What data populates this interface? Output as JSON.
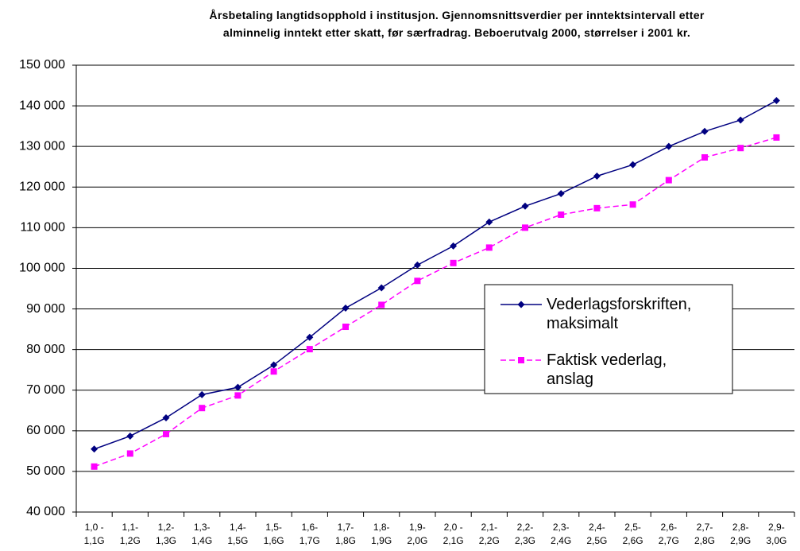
{
  "chart_data": {
    "type": "line",
    "title": "Årsbetaling langtidsopphold i institusjon. Gjennomsnittsverdier per inntektsintervall etter\nalminnelig inntekt etter skatt, før særfradrag. Beboerutvalg 2000, størrelser i 2001 kr.",
    "categories": [
      "1,0 -\n1,1G",
      "1,1-\n1,2G",
      "1,2-\n1,3G",
      "1,3-\n1,4G",
      "1,4-\n1,5G",
      "1,5-\n1,6G",
      "1,6-\n1,7G",
      "1,7-\n1,8G",
      "1,8-\n1,9G",
      "1,9-\n2,0G",
      "2,0 -\n2,1G",
      "2,1-\n2,2G",
      "2,2-\n2,3G",
      "2,3-\n2,4G",
      "2,4-\n2,5G",
      "2,5-\n2,6G",
      "2,6-\n2,7G",
      "2,7-\n2,8G",
      "2,8-\n2,9G",
      "2,9-\n3,0G"
    ],
    "series": [
      {
        "name": "Vederlagsforskriften,\nmaksimalt",
        "color": "#000080",
        "marker": "diamond",
        "dashed": false,
        "values": [
          55500,
          58700,
          63200,
          68900,
          70700,
          76200,
          83000,
          90200,
          95200,
          100800,
          105500,
          111400,
          115300,
          118400,
          122700,
          125500,
          130000,
          133700,
          136500,
          141300
        ]
      },
      {
        "name": "Faktisk vederlag,\nanslag",
        "color": "#ff00ff",
        "marker": "square",
        "dashed": true,
        "values": [
          51200,
          54400,
          59200,
          65600,
          68700,
          74600,
          80100,
          85600,
          91000,
          96900,
          101300,
          105100,
          110000,
          113200,
          114800,
          115700,
          121700,
          127300,
          129600,
          132200
        ]
      }
    ],
    "ylim": [
      40000,
      150000
    ],
    "yticks": [
      {
        "value": 40000,
        "label": "40 000"
      },
      {
        "value": 50000,
        "label": "50 000"
      },
      {
        "value": 60000,
        "label": "60 000"
      },
      {
        "value": 70000,
        "label": "70 000"
      },
      {
        "value": 80000,
        "label": "80 000"
      },
      {
        "value": 90000,
        "label": "90 000"
      },
      {
        "value": 100000,
        "label": "100 000"
      },
      {
        "value": 110000,
        "label": "110 000"
      },
      {
        "value": 120000,
        "label": "120 000"
      },
      {
        "value": 130000,
        "label": "130 000"
      },
      {
        "value": 140000,
        "label": "140 000"
      },
      {
        "value": 150000,
        "label": "150 000"
      }
    ],
    "grid": true
  }
}
